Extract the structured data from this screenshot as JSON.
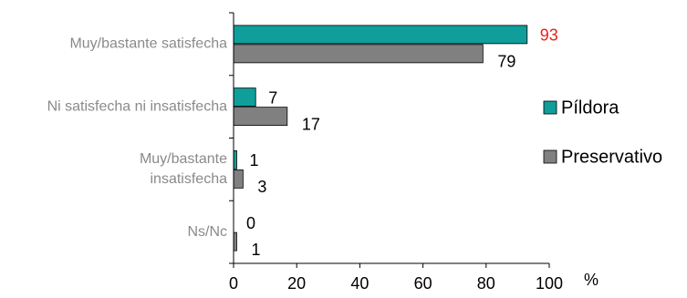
{
  "chart_data": {
    "type": "bar",
    "orientation": "horizontal",
    "categories": [
      [
        "Muy/bastante satisfecha"
      ],
      [
        "Ni satisfecha ni insatisfecha"
      ],
      [
        "Muy/bastante",
        "insatisfecha"
      ],
      [
        "Ns/Nc"
      ]
    ],
    "series": [
      {
        "name": "Píldora",
        "values": [
          93,
          7,
          1,
          0
        ],
        "color": "#0f9e9a",
        "label_color": [
          "#e8221e",
          "#000000",
          "#000000",
          "#000000"
        ]
      },
      {
        "name": "Preservativo",
        "values": [
          79,
          17,
          3,
          1
        ],
        "color": "#808080",
        "label_color": [
          "#000000",
          "#000000",
          "#000000",
          "#000000"
        ]
      }
    ],
    "xlim": [
      0,
      100
    ],
    "xticks": [
      "0",
      "20",
      "40",
      "60",
      "80",
      "100"
    ],
    "unit": "%",
    "legend_position": "right",
    "grid": false
  }
}
